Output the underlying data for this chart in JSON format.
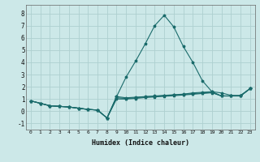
{
  "xlabel": "Humidex (Indice chaleur)",
  "bg_color": "#cce8e8",
  "grid_color": "#aed0d0",
  "line_color": "#1a6b6b",
  "xlim": [
    -0.5,
    23.5
  ],
  "ylim": [
    -1.5,
    8.7
  ],
  "xticks": [
    0,
    1,
    2,
    3,
    4,
    5,
    6,
    7,
    8,
    9,
    10,
    11,
    12,
    13,
    14,
    15,
    16,
    17,
    18,
    19,
    20,
    21,
    22,
    23
  ],
  "yticks": [
    -1,
    0,
    1,
    2,
    3,
    4,
    5,
    6,
    7,
    8
  ],
  "lines": [
    [
      0.85,
      0.65,
      0.45,
      0.4,
      0.35,
      0.25,
      0.15,
      0.1,
      -0.55,
      1.2,
      1.1,
      1.15,
      1.2,
      1.25,
      1.3,
      1.35,
      1.4,
      1.5,
      1.55,
      1.6,
      1.25,
      1.25,
      1.25,
      1.85
    ],
    [
      0.85,
      0.65,
      0.45,
      0.4,
      0.35,
      0.25,
      0.15,
      0.1,
      -0.55,
      1.2,
      2.8,
      4.1,
      5.5,
      7.0,
      7.85,
      6.9,
      5.3,
      4.0,
      2.5,
      1.6,
      1.5,
      1.3,
      1.3,
      1.85
    ],
    [
      0.85,
      0.65,
      0.45,
      0.4,
      0.35,
      0.25,
      0.15,
      0.1,
      -0.55,
      1.1,
      1.05,
      1.1,
      1.18,
      1.22,
      1.27,
      1.32,
      1.38,
      1.44,
      1.5,
      1.56,
      1.25,
      1.25,
      1.25,
      1.85
    ],
    [
      0.85,
      0.65,
      0.45,
      0.4,
      0.35,
      0.25,
      0.15,
      0.1,
      -0.55,
      1.0,
      1.0,
      1.05,
      1.12,
      1.17,
      1.22,
      1.27,
      1.33,
      1.39,
      1.45,
      1.51,
      1.25,
      1.25,
      1.25,
      1.85
    ]
  ]
}
